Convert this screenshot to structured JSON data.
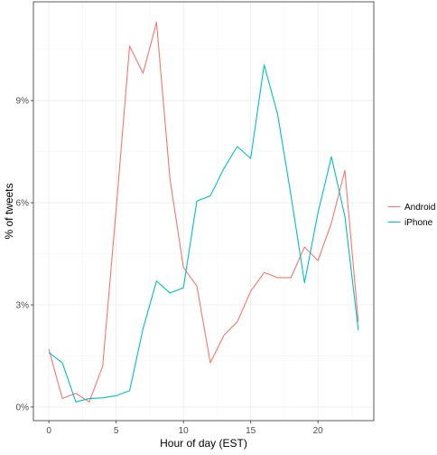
{
  "chart_data": {
    "type": "line",
    "title": "",
    "xlabel": "Hour of day (EST)",
    "ylabel": "% of tweets",
    "xlim": [
      -1.15,
      24.15
    ],
    "ylim": [
      -0.4,
      11.9
    ],
    "x_ticks": [
      0,
      5,
      10,
      15,
      20
    ],
    "x_tick_labels": [
      "0",
      "5",
      "10",
      "15",
      "20"
    ],
    "y_ticks": [
      0,
      3,
      6,
      9
    ],
    "y_tick_labels": [
      "0%",
      "3%",
      "6%",
      "9%"
    ],
    "grid": true,
    "legend_position": "right",
    "x": [
      0,
      1,
      2,
      3,
      4,
      5,
      6,
      7,
      8,
      9,
      10,
      11,
      12,
      13,
      14,
      15,
      16,
      17,
      18,
      19,
      20,
      21,
      22,
      23
    ],
    "series": [
      {
        "name": "Android",
        "color": "#F8766D",
        "values": [
          1.7,
          0.25,
          0.4,
          0.15,
          1.2,
          5.8,
          10.6,
          9.8,
          11.3,
          6.7,
          4.1,
          3.55,
          1.3,
          2.1,
          2.5,
          3.4,
          3.95,
          3.8,
          3.8,
          4.7,
          4.3,
          5.4,
          6.95,
          2.5
        ]
      },
      {
        "name": "iPhone",
        "color": "#00BFC4",
        "values": [
          1.6,
          1.3,
          0.15,
          0.25,
          0.27,
          0.33,
          0.48,
          2.3,
          3.7,
          3.35,
          3.5,
          6.05,
          6.2,
          7.0,
          7.65,
          7.3,
          10.05,
          8.6,
          6.2,
          3.65,
          5.7,
          7.35,
          5.6,
          2.25
        ]
      }
    ]
  },
  "panel": {
    "background": "#FFFFFF",
    "border": "#333333",
    "major_grid": "#EBEBEB",
    "minor_grid": "#F5F5F5",
    "tick_color": "#333333",
    "tick_label_color": "#4D4D4D"
  }
}
